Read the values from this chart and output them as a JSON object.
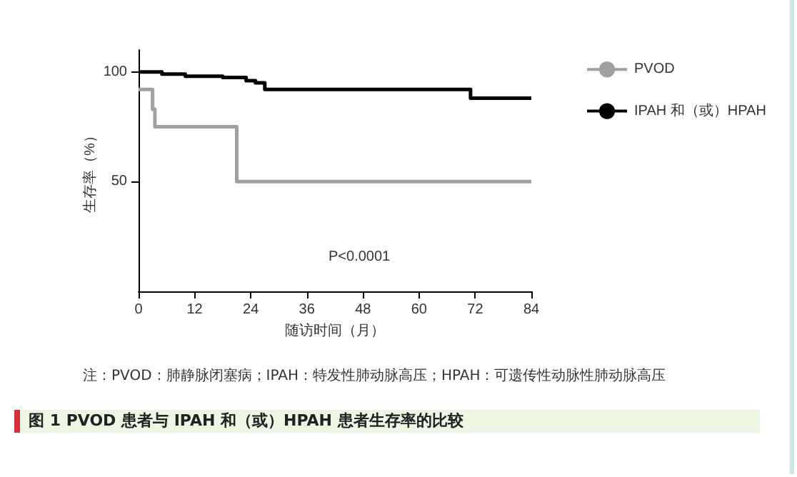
{
  "chart_data": {
    "type": "step",
    "title": "图 1  PVOD 患者与 IPAH 和（或）HPAH 患者生存率的比较",
    "xlabel": "随访时间（月）",
    "ylabel": "生存率（%）",
    "series": [
      {
        "name": "PVOD",
        "color": "#a0a0a0",
        "x": [
          0,
          3,
          3.5,
          21,
          84
        ],
        "values": [
          92,
          83,
          75,
          50,
          50
        ]
      },
      {
        "name": "IPAH 和（或）HPAH",
        "color": "#000000",
        "x": [
          0,
          5,
          10,
          18,
          23,
          25,
          27,
          71,
          84
        ],
        "values": [
          100,
          99,
          98,
          97.5,
          96,
          95,
          92,
          88,
          88
        ]
      }
    ],
    "xlim": [
      0,
      84
    ],
    "xticks": [
      0,
      12,
      24,
      36,
      48,
      60,
      72,
      84
    ],
    "ylim": [
      0,
      110
    ],
    "yticks": [
      50,
      100
    ],
    "legend": "right",
    "grid": false,
    "marker": "none",
    "line_style": "solid",
    "annotations": [
      "P<0.0001",
      "注：PVOD：肺静脉闭塞病；IPAH：特发性肺动脉高压；HPAH：可遗传性动脉性肺动脉高压"
    ]
  }
}
